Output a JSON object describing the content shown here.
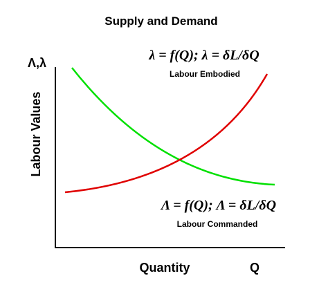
{
  "title": "Supply and Demand",
  "y_axis": {
    "symbol": "Λ,λ",
    "label": "Labour Values"
  },
  "x_axis": {
    "label": "Quantity",
    "symbol": "Q"
  },
  "curves": {
    "embodied": {
      "equation": "λ = f(Q); λ = δL/δQ",
      "label": "Labour Embodied",
      "color": "#00e000"
    },
    "commanded": {
      "equation": "Λ = f(Q); Λ = δL/δQ",
      "label": "Labour Commanded",
      "color": "#e00000"
    }
  },
  "axis_color": "#000000"
}
